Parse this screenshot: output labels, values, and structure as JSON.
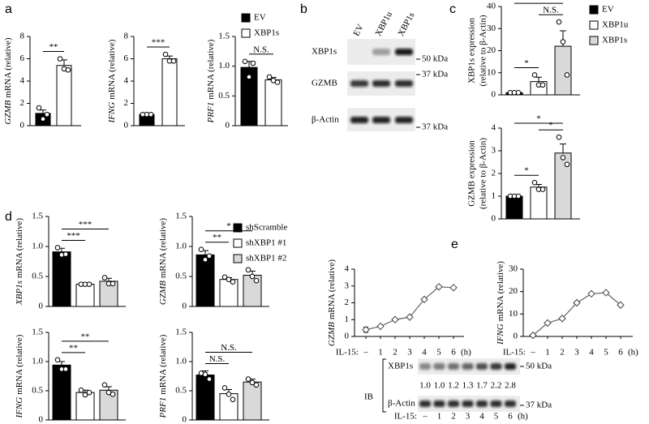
{
  "panel_labels": [
    "a",
    "b",
    "c",
    "d",
    "e"
  ],
  "legends": [
    [
      {
        "name": "EV",
        "color": "#000000"
      },
      {
        "name": "XBP1s",
        "color": "#ffffff"
      }
    ],
    [
      {
        "name": "EV",
        "color": "#000000"
      },
      {
        "name": "XBP1u",
        "color": "#ffffff"
      },
      {
        "name": "XBP1s",
        "color": "#d9d9d9"
      }
    ],
    [
      {
        "name": "shScramble",
        "color": "#000000"
      },
      {
        "name": "shXBP1 #1",
        "color": "#ffffff"
      },
      {
        "name": "shXBP1 #2",
        "color": "#d9d9d9"
      }
    ]
  ],
  "chart_data": [
    {
      "type": "bar",
      "legend": 0,
      "ylabel": [
        "GZMB",
        "mRNA (relative)"
      ],
      "ylabel_style": "italic-gene",
      "ylim": [
        0,
        8
      ],
      "yticks": [
        0,
        2,
        4,
        6,
        8
      ],
      "values": [
        1.1,
        5.4
      ],
      "errors": [
        0.3,
        0.5
      ],
      "points": [
        [
          1.6,
          0.6,
          1.0
        ],
        [
          6.0,
          5.1,
          5.0
        ]
      ],
      "significance": {
        "0-1": "**"
      }
    },
    {
      "type": "bar",
      "legend": 0,
      "ylabel": [
        "IFNG",
        "mRNA (relative)"
      ],
      "ylabel_style": "italic-gene",
      "ylim": [
        0,
        8
      ],
      "yticks": [
        0,
        2,
        4,
        6,
        8
      ],
      "values": [
        1.0,
        6.0
      ],
      "errors": [
        0.05,
        0.25
      ],
      "points": [
        [
          1.0,
          1.0,
          1.0
        ],
        [
          6.4,
          5.8,
          5.8
        ]
      ],
      "significance": {
        "0-1": "***"
      }
    },
    {
      "type": "bar",
      "legend": 0,
      "ylabel": [
        "PRF1",
        "mRNA (relative)"
      ],
      "ylabel_style": "italic-gene",
      "ylim": [
        0,
        1.5
      ],
      "yticks": [
        0,
        0.5,
        {
          "value": 1,
          "label": "1.0"
        },
        1.5
      ],
      "values": [
        0.98,
        0.77
      ],
      "errors": [
        0.1,
        0.04
      ],
      "points": [
        [
          1.08,
          0.82,
          1.05
        ],
        [
          0.82,
          0.76,
          0.73
        ]
      ],
      "significance": {
        "0-1": "N.S."
      }
    },
    {
      "type": "bar",
      "legend": 1,
      "ylabel": [
        "XBP1s expression",
        "(relative to β-Actin)"
      ],
      "ylabel_style": "stacked",
      "ylim": [
        0,
        40
      ],
      "yticks": [
        0,
        10,
        20,
        30,
        40
      ],
      "values": [
        1,
        6,
        22
      ],
      "errors": [
        0.1,
        2,
        7
      ],
      "points": [
        [
          1,
          1,
          1
        ],
        [
          9,
          4.5,
          4.5
        ],
        [
          33,
          24,
          9
        ]
      ],
      "significance": {
        "0-1": "*",
        "1-2": "N.S.",
        "0-2": "*"
      }
    },
    {
      "type": "bar",
      "legend": 1,
      "ylabel": [
        "GZMB expression",
        "(relative to β-Actin)"
      ],
      "ylabel_style": "stacked",
      "ylim": [
        0,
        4
      ],
      "yticks": [
        0,
        1,
        2,
        3,
        4
      ],
      "values": [
        1,
        1.4,
        2.9
      ],
      "errors": [
        0.02,
        0.12,
        0.4
      ],
      "points": [
        [
          1,
          1,
          1
        ],
        [
          1.6,
          1.3,
          1.3
        ],
        [
          3.6,
          2.7,
          2.4
        ]
      ],
      "significance": {
        "0-1": "*",
        "1-2": "*",
        "0-2": "*"
      }
    },
    {
      "type": "bar",
      "legend": 2,
      "ylabel": [
        "XBP1s",
        "mRNA (relative)"
      ],
      "ylabel_style": "italic-gene",
      "ylim": [
        0,
        1.5
      ],
      "yticks": [
        0,
        0.5,
        {
          "value": 1,
          "label": "1.0"
        },
        1.5
      ],
      "values": [
        0.91,
        0.37,
        0.42
      ],
      "errors": [
        0.06,
        0.01,
        0.05
      ],
      "points": [
        [
          0.98,
          0.86,
          0.87
        ],
        [
          0.37,
          0.37,
          0.37
        ],
        [
          0.48,
          0.38,
          0.38
        ]
      ],
      "significance": {
        "0-1": "***",
        "0-2": "***"
      }
    },
    {
      "type": "bar",
      "legend": 2,
      "ylabel": [
        "GZMB",
        "mRNA (relative)"
      ],
      "ylabel_style": "italic-gene",
      "ylim": [
        0,
        1.5
      ],
      "yticks": [
        0,
        0.5,
        {
          "value": 1,
          "label": "1.0"
        },
        1.5
      ],
      "values": [
        0.86,
        0.45,
        0.52
      ],
      "errors": [
        0.07,
        0.03,
        0.07
      ],
      "points": [
        [
          0.95,
          0.78,
          0.84
        ],
        [
          0.49,
          0.45,
          0.41
        ],
        [
          0.61,
          0.5,
          0.43
        ]
      ],
      "significance": {
        "0-1": "**",
        "0-2": "*"
      }
    },
    {
      "type": "bar",
      "legend": 2,
      "ylabel": [
        "IFNG",
        "mRNA (relative)"
      ],
      "ylabel_style": "italic-gene",
      "ylim": [
        0,
        1.5
      ],
      "yticks": [
        0,
        0.5,
        {
          "value": 1,
          "label": "1.0"
        },
        1.5
      ],
      "values": [
        0.94,
        0.47,
        0.51
      ],
      "errors": [
        0.06,
        0.04,
        0.06
      ],
      "points": [
        [
          1.03,
          0.87,
          0.87
        ],
        [
          0.51,
          0.43,
          0.47
        ],
        [
          0.6,
          0.47,
          0.44
        ]
      ],
      "significance": {
        "0-1": "**",
        "0-2": "**"
      }
    },
    {
      "type": "bar",
      "legend": 2,
      "ylabel": [
        "PRF1",
        "mRNA (relative)"
      ],
      "ylabel_style": "italic-gene",
      "ylim": [
        0,
        1.5
      ],
      "yticks": [
        0,
        0.5,
        {
          "value": 1,
          "label": "1.0"
        },
        1.5
      ],
      "values": [
        0.77,
        0.45,
        0.65
      ],
      "errors": [
        0.07,
        0.07,
        0.05
      ],
      "points": [
        [
          0.8,
          0.78,
          0.7
        ],
        [
          0.55,
          0.44,
          0.35
        ],
        [
          0.7,
          0.64,
          0.6
        ]
      ],
      "significance": {
        "0-1": "N.S.",
        "0-2": "N.S."
      }
    },
    {
      "type": "line",
      "ylabel": [
        "GZMB",
        "mRNA (relative)"
      ],
      "ylabel_style": "italic-gene",
      "x_label": "IL-15:",
      "x_unit": "(h)",
      "categories": [
        "–",
        "1",
        "2",
        "3",
        "4",
        "5",
        "6"
      ],
      "ylim": [
        0,
        4
      ],
      "yticks": [
        0,
        1,
        2,
        3,
        4
      ],
      "values": [
        0.4,
        0.6,
        1.0,
        1.15,
        2.2,
        2.95,
        2.9
      ],
      "errors": [
        0.15,
        0.05,
        0.05,
        0.05,
        0.05,
        0.05,
        0.05
      ]
    },
    {
      "type": "line",
      "ylabel": [
        "IFNG",
        "mRNA (relative)"
      ],
      "ylabel_style": "italic-gene",
      "x_label": "IL-15:",
      "x_unit": "(h)",
      "categories": [
        "–",
        "1",
        "2",
        "3",
        "4",
        "5",
        "6"
      ],
      "ylim": [
        0,
        30
      ],
      "yticks": [
        0,
        10,
        20,
        30
      ],
      "values": [
        0.5,
        6,
        8,
        15,
        19,
        19.5,
        14
      ],
      "errors": [
        0.3,
        0.4,
        0.4,
        0.4,
        0.4,
        0.4,
        0.4
      ]
    }
  ],
  "blots": [
    {
      "lanes": [
        "EV",
        "XBP1u",
        "XBP1s"
      ],
      "rows": [
        "XBP1s",
        "GZMB",
        "β-Actin"
      ],
      "markers": [
        "50 kDa",
        "37 kDa",
        "37 kDa"
      ]
    },
    {
      "rows": [
        "XBP1s",
        "β-Actin"
      ],
      "side_label": "IB",
      "markers": [
        "50 kDa",
        "37 kDa"
      ],
      "quantification": [
        "1.0",
        "1.0",
        "1.2",
        "1.3",
        "1.7",
        "2.2",
        "2.8"
      ],
      "lane_label": "IL-15:",
      "lanes": [
        "–",
        "1",
        "2",
        "3",
        "4",
        "5",
        "6"
      ],
      "lane_unit": "(h)"
    }
  ]
}
